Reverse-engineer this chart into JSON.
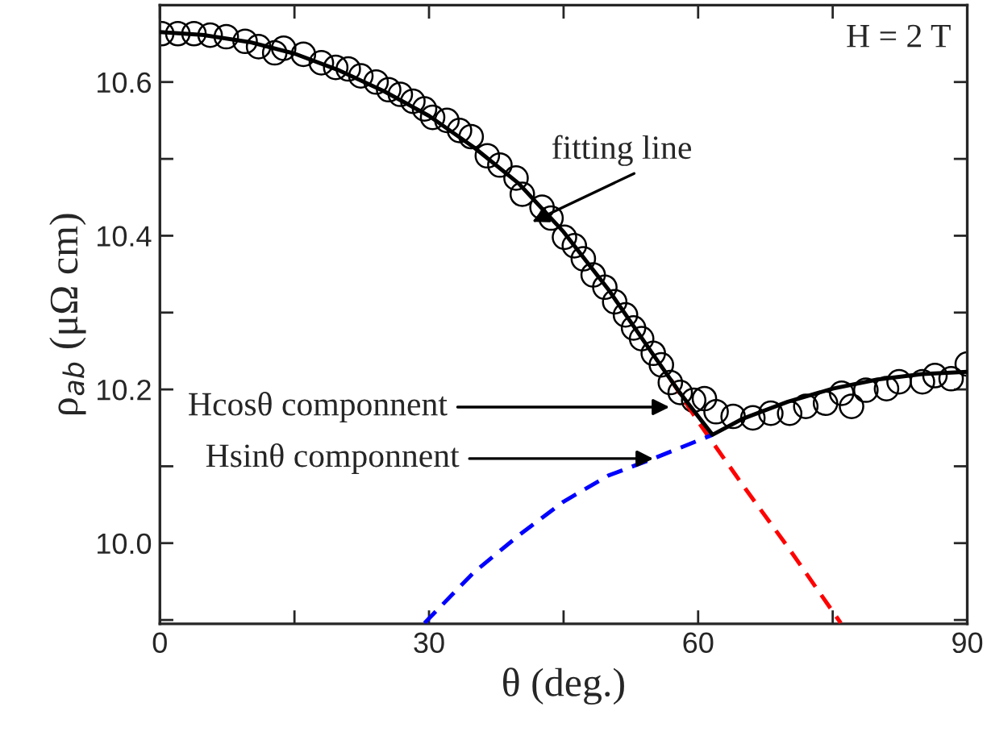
{
  "chart_data": {
    "type": "scatter",
    "xlabel": "θ (deg.)",
    "ylabel": "ρ$_{ab}$ (μΩ cm)",
    "xlim": [
      0,
      90
    ],
    "ylim": [
      9.895,
      10.7
    ],
    "xticks": [
      0,
      {
        "value": 15,
        "label": null
      },
      30,
      {
        "value": 45,
        "label": null
      },
      60,
      {
        "value": 75,
        "label": null
      },
      90
    ],
    "yticks": [
      {
        "value": 9.9,
        "label": null
      },
      {
        "value": 10.0,
        "label": "10.0"
      },
      {
        "value": 10.1,
        "label": null
      },
      {
        "value": 10.2,
        "label": "10.2"
      },
      {
        "value": 10.3,
        "label": null
      },
      {
        "value": 10.4,
        "label": "10.4"
      },
      {
        "value": 10.5,
        "label": null
      },
      {
        "value": 10.6,
        "label": "10.6"
      }
    ],
    "grid": false,
    "legend": false,
    "series": [
      {
        "marker": "circle",
        "color": "#000000",
        "x": [
          0.2,
          2.0,
          3.8,
          5.6,
          7.4,
          9.5,
          11.0,
          12.8,
          13.8,
          16.0,
          18.0,
          19.6,
          21.0,
          22.4,
          24.1,
          25.5,
          26.8,
          28.2,
          29.5,
          30.4,
          32.0,
          33.4,
          34.7,
          36.5,
          37.9,
          39.7,
          40.4,
          42.6,
          43.6,
          45.1,
          46.2,
          47.2,
          48.3,
          49.6,
          50.7,
          51.9,
          52.8,
          53.7,
          55.0,
          55.9,
          56.9,
          58.0,
          59.5,
          60.7,
          62.0,
          63.9,
          66.1,
          68.1,
          70.2,
          72.0,
          74.2,
          76.0,
          77.1,
          78.7,
          81.0,
          82.4,
          85.0,
          86.4,
          88.2,
          90.0
        ],
        "values": [
          10.663,
          10.663,
          10.663,
          10.661,
          10.659,
          10.653,
          10.646,
          10.638,
          10.644,
          10.636,
          10.625,
          10.619,
          10.617,
          10.608,
          10.6,
          10.59,
          10.584,
          10.575,
          10.565,
          10.554,
          10.55,
          10.537,
          10.529,
          10.504,
          10.492,
          10.475,
          10.454,
          10.437,
          10.423,
          10.398,
          10.387,
          10.37,
          10.349,
          10.333,
          10.314,
          10.297,
          10.28,
          10.266,
          10.247,
          10.232,
          10.209,
          10.196,
          10.186,
          10.188,
          10.171,
          10.165,
          10.163,
          10.169,
          10.169,
          10.178,
          10.182,
          10.195,
          10.178,
          10.199,
          10.201,
          10.21,
          10.21,
          10.218,
          10.214,
          10.233
        ]
      },
      {
        "type": "line",
        "line_style": "dashed",
        "color": "#ff0000",
        "x": [
          57,
          60,
          65,
          70,
          75.9
        ],
        "values": [
          10.212,
          10.158,
          10.075,
          9.995,
          9.896
        ]
      },
      {
        "type": "line",
        "line_style": "dashed",
        "color": "#0000ff",
        "x": [
          29.5,
          35,
          40,
          45,
          50,
          55,
          61.6
        ],
        "values": [
          9.896,
          9.962,
          10.01,
          10.054,
          10.088,
          10.11,
          10.141
        ]
      },
      {
        "type": "line",
        "line_style": "solid",
        "color": "#000000",
        "x": [
          0,
          5,
          10,
          15,
          20,
          25,
          30,
          35,
          40,
          45,
          50,
          55,
          58,
          61.6,
          65,
          70,
          75,
          80,
          85,
          90
        ],
        "values": [
          10.665,
          10.661,
          10.652,
          10.637,
          10.615,
          10.588,
          10.556,
          10.515,
          10.468,
          10.405,
          10.33,
          10.245,
          10.195,
          10.141,
          10.162,
          10.184,
          10.201,
          10.213,
          10.22,
          10.223
        ]
      }
    ],
    "annotations": [
      {
        "text": "fitting line",
        "x": 41.5,
        "y": 10.418
      },
      {
        "text": "Hcosθ componnent",
        "x": 56.8,
        "y": 10.177
      },
      {
        "text": "Hsinθ componnent",
        "x": 55,
        "y": 10.11
      },
      "H = 2 T"
    ]
  }
}
